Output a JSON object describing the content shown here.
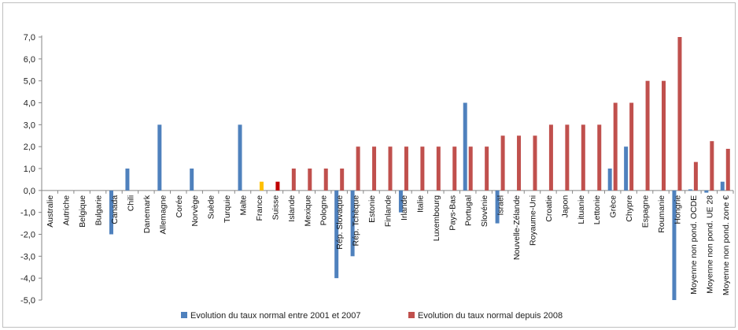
{
  "chart_data": {
    "type": "bar",
    "categories": [
      "Australie",
      "Autriche",
      "Belgique",
      "Bulgarie",
      "Canada",
      "Chili",
      "Danemark",
      "Allemagne",
      "Corée",
      "Norvège",
      "Suède",
      "Turquie",
      "Malte",
      "France",
      "Suisse",
      "Islande",
      "Mexique",
      "Pologne",
      "Rép. Slovaque",
      "Rép. Tchèque",
      "Estonie",
      "Finlande",
      "Irlande",
      "Italie",
      "Luxembourg",
      "Pays-Bas",
      "Portugal",
      "Slovénie",
      "Israël",
      "Nouvelle-Zélande",
      "Royaume-Uni",
      "Croatie",
      "Japon",
      "Lituanie",
      "Lettonie",
      "Grèce",
      "Chypre",
      "Espagne",
      "Roumanie",
      "Hongrie",
      "Moyenne non pond. OCDE",
      "Moyenne non pond. UE 28",
      "Moyenne non pond. zone €"
    ],
    "series": [
      {
        "name": "Evolution du taux normal entre 2001 et 2007",
        "color": "#4f81bd",
        "values": [
          0,
          0,
          0,
          0,
          -2,
          1,
          0,
          3,
          0,
          1,
          0,
          0,
          3,
          0,
          0,
          0,
          0,
          0,
          -4,
          -3,
          0,
          0,
          -1,
          0,
          0,
          0,
          4,
          0,
          -1.5,
          0,
          0,
          0,
          0,
          0,
          0,
          1,
          2,
          0,
          0,
          -5,
          0.05,
          -0.1,
          0.4
        ]
      },
      {
        "name": "Evolution du taux normal depuis 2008",
        "color": "#c0504d",
        "values": [
          0,
          0,
          0,
          0,
          0,
          0,
          0,
          0,
          0,
          0,
          0,
          0,
          0,
          0.4,
          0.4,
          1,
          1,
          1,
          1,
          2,
          2,
          2,
          2,
          2,
          2,
          2,
          2,
          2,
          2.5,
          2.5,
          2.5,
          3,
          3,
          3,
          3,
          4,
          4,
          5,
          5,
          7,
          1.3,
          2.25,
          1.9
        ]
      }
    ],
    "highlight_colors": {
      "France": "#ffc000",
      "Suisse": "#c00000"
    },
    "yticks": [
      "-5,0",
      "-4,0",
      "-3,0",
      "-2,0",
      "-1,0",
      "0,0",
      "1,0",
      "2,0",
      "3,0",
      "4,0",
      "5,0",
      "6,0",
      "7,0"
    ],
    "ylim": [
      -5,
      7
    ],
    "grid": false,
    "legend_position": "bottom"
  }
}
